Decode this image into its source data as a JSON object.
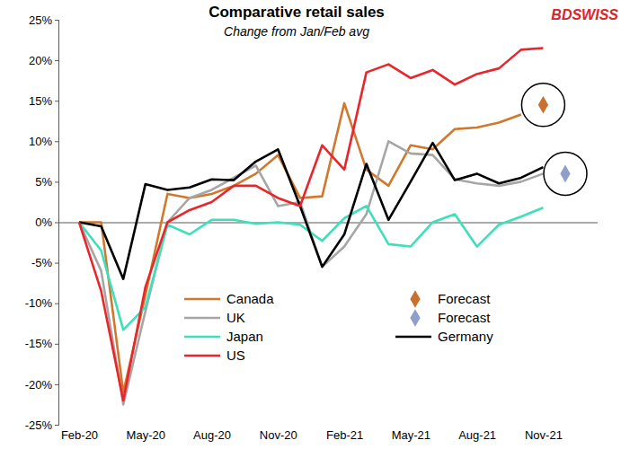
{
  "chart_data": {
    "type": "line",
    "title": "Comparative retail sales",
    "subtitle": "Change from Jan/Feb avg",
    "annotations": [
      {
        "text": "BDSWISS"
      }
    ],
    "categories": [
      "Feb-20",
      null,
      null,
      "May-20",
      null,
      null,
      "Aug-20",
      null,
      null,
      "Nov-20",
      null,
      null,
      "Feb-21",
      null,
      null,
      "May-21",
      null,
      null,
      "Aug-21",
      null,
      null,
      "Nov-21",
      null
    ],
    "series": [
      {
        "name": "Canada",
        "color": "#d0782e",
        "type": "line",
        "line_style": "solid",
        "values": [
          0,
          0,
          -21,
          -9,
          3.5,
          3,
          3.5,
          4.5,
          6,
          8.3,
          3,
          3.2,
          14.7,
          6.5,
          4.5,
          9.5,
          9,
          11.5,
          11.7,
          12.3,
          13.3,
          null,
          null
        ]
      },
      {
        "name": "Forecast",
        "color": "#c8702d",
        "type": "scatter",
        "marker": "diamond",
        "values": [
          null,
          null,
          null,
          null,
          null,
          null,
          null,
          null,
          null,
          null,
          null,
          null,
          null,
          null,
          null,
          null,
          null,
          null,
          null,
          null,
          null,
          14.5,
          null
        ]
      },
      {
        "name": "UK",
        "color": "#a6a6a6",
        "type": "line",
        "line_style": "solid",
        "values": [
          0,
          -6,
          -22.5,
          -11,
          0,
          3,
          4,
          5.5,
          7,
          2,
          2.5,
          -5.5,
          -3,
          1,
          10,
          8.5,
          8.3,
          5.3,
          4.8,
          4.5,
          5,
          6,
          null
        ]
      },
      {
        "name": "Forecast",
        "color": "#8f9fc9",
        "type": "scatter",
        "marker": "diamond",
        "values": [
          null,
          null,
          null,
          null,
          null,
          null,
          null,
          null,
          null,
          null,
          null,
          null,
          null,
          null,
          null,
          null,
          null,
          null,
          null,
          null,
          null,
          null,
          6
        ]
      },
      {
        "name": "Japan",
        "color": "#3de0bb",
        "type": "line",
        "line_style": "solid",
        "values": [
          0,
          -3.5,
          -13.3,
          -10.5,
          -0.3,
          -1.5,
          0.3,
          0.3,
          -0.2,
          0,
          -0.3,
          -2.3,
          0.5,
          2,
          -2.7,
          -3,
          0,
          1,
          -3,
          -0.3,
          0.7,
          1.8,
          null
        ]
      },
      {
        "name": "Germany",
        "color": "#000000",
        "type": "line",
        "line_style": "solid",
        "values": [
          0,
          -0.5,
          -7,
          4.7,
          4,
          4.3,
          5.3,
          5.2,
          7.5,
          9,
          2,
          -5.5,
          -1.5,
          7.2,
          0.3,
          5,
          9.8,
          5.2,
          6,
          4.8,
          5.5,
          6.8,
          null
        ]
      },
      {
        "name": "US",
        "color": "#e8262b",
        "type": "line",
        "line_style": "solid",
        "values": [
          0,
          -8.5,
          -22,
          -8,
          0,
          1.5,
          2.5,
          4.5,
          4.5,
          3,
          2,
          9.5,
          6.5,
          18.5,
          19.5,
          17.8,
          18.8,
          17,
          18.3,
          19,
          21.3,
          21.5,
          null
        ]
      }
    ],
    "ylim": [
      -25,
      25
    ],
    "yticks": [
      {
        "value": -25,
        "label": "-25%"
      },
      {
        "value": -20,
        "label": "-20%"
      },
      {
        "value": -15,
        "label": "-15%"
      },
      {
        "value": -10,
        "label": "-10%"
      },
      {
        "value": -5,
        "label": "-5%"
      },
      {
        "value": 0,
        "label": "0%"
      },
      {
        "value": 5,
        "label": "5%"
      },
      {
        "value": 10,
        "label": "10%"
      },
      {
        "value": 15,
        "label": "15%"
      },
      {
        "value": 20,
        "label": "20%"
      },
      {
        "value": 25,
        "label": "25%"
      }
    ],
    "grid": false,
    "legend": "bottom"
  }
}
